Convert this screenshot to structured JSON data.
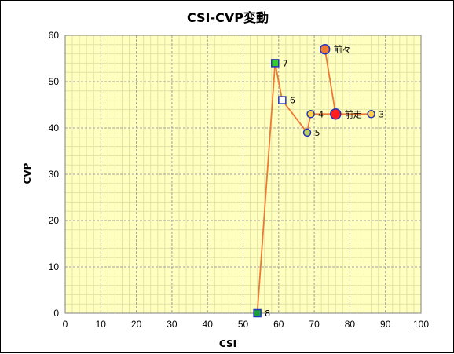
{
  "chart_data": {
    "type": "scatter",
    "title": "CSI-CVP変動",
    "xlabel": "CSI",
    "ylabel": "CVP",
    "xlim": [
      0,
      100
    ],
    "ylim": [
      0,
      60
    ],
    "x_ticks": [
      0,
      10,
      20,
      30,
      40,
      50,
      60,
      70,
      80,
      90,
      100
    ],
    "y_ticks": [
      0,
      10,
      20,
      30,
      40,
      50,
      60
    ],
    "x_minor_step": 2,
    "y_minor_step": 2,
    "grid": true,
    "legend": "none",
    "colors": {
      "plot_bg": "#ffffc0",
      "minor_grid": "#e3e3a6",
      "major_grid": "#a0a0a0",
      "connector": "#ec7a35",
      "marker_edge": "#2233bb"
    },
    "points": [
      {
        "label": "前々",
        "x": 73,
        "y": 57,
        "marker": "circle",
        "size": 12,
        "fill": "#f07a30"
      },
      {
        "label": "前走",
        "x": 76,
        "y": 43,
        "marker": "circle",
        "size": 13,
        "fill": "#ff1f1f"
      },
      {
        "label": "3",
        "x": 86,
        "y": 43,
        "marker": "circle",
        "size": 9,
        "fill": "#ffd24a"
      },
      {
        "label": "4",
        "x": 69,
        "y": 43,
        "marker": "circle",
        "size": 9,
        "fill": "#ffd24a"
      },
      {
        "label": "5",
        "x": 68,
        "y": 39,
        "marker": "circle",
        "size": 9,
        "fill": "#b8d060"
      },
      {
        "label": "6",
        "x": 61,
        "y": 46,
        "marker": "square",
        "size": 9,
        "fill": "#ffffff"
      },
      {
        "label": "7",
        "x": 59,
        "y": 54,
        "marker": "square",
        "size": 9,
        "fill": "#33cc33"
      },
      {
        "label": "8",
        "x": 54,
        "y": 0,
        "marker": "square",
        "size": 9,
        "fill": "#1a9e3a"
      }
    ]
  }
}
